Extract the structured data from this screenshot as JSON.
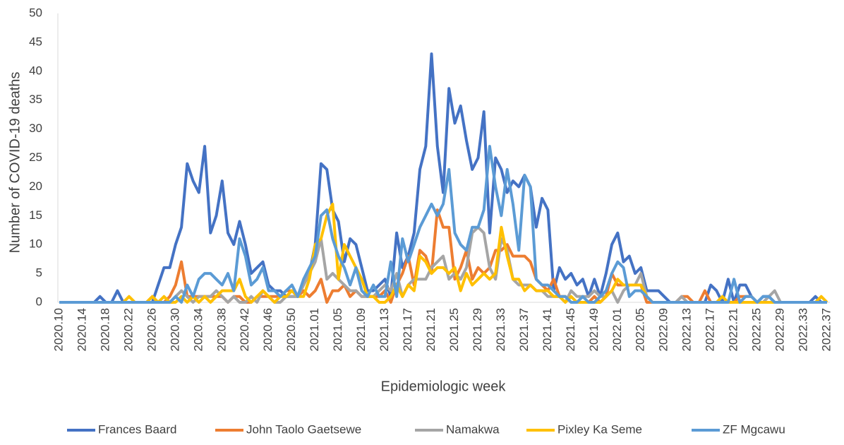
{
  "chart_data": {
    "type": "line",
    "ylabel": "Number of COVID-19 deaths",
    "xlabel": "Epidemiologic week",
    "categories": [
      "2020.10",
      null,
      null,
      null,
      "2020.14",
      null,
      null,
      null,
      "2020.18",
      null,
      null,
      null,
      "2020.22",
      null,
      null,
      null,
      "2020.26",
      null,
      null,
      null,
      "2020.30",
      null,
      null,
      null,
      "2020.34",
      null,
      null,
      null,
      "2020.38",
      null,
      null,
      null,
      "2020.42",
      null,
      null,
      null,
      "2020.46",
      null,
      null,
      null,
      "2020.50",
      null,
      null,
      null,
      "2021.01",
      null,
      null,
      null,
      "2021.05",
      null,
      null,
      null,
      "2021.09",
      null,
      null,
      null,
      "2021.13",
      null,
      null,
      null,
      "2021.17",
      null,
      null,
      null,
      "2021.21",
      null,
      null,
      null,
      "2021.25",
      null,
      null,
      null,
      "2021.29",
      null,
      null,
      null,
      "2021.33",
      null,
      null,
      null,
      "2021.37",
      null,
      null,
      null,
      "2021.41",
      null,
      null,
      null,
      "2021.45",
      null,
      null,
      null,
      "2021.49",
      null,
      null,
      null,
      "2022.01",
      null,
      null,
      null,
      "2022.05",
      null,
      null,
      null,
      "2022.09",
      null,
      null,
      null,
      "2022.13",
      null,
      null,
      null,
      "2022.17",
      null,
      null,
      null,
      "2022.21",
      null,
      null,
      null,
      "2022.25",
      null,
      null,
      null,
      "2022.29",
      null,
      null,
      null,
      "2022.33",
      null,
      null,
      null,
      "2022.37"
    ],
    "series": [
      {
        "name": "Frances Baard",
        "color": "#4472c4",
        "values": [
          0,
          0,
          0,
          0,
          0,
          0,
          0,
          1,
          0,
          0,
          2,
          0,
          0,
          0,
          0,
          0,
          0,
          3,
          6,
          6,
          10,
          13,
          24,
          21,
          19,
          27,
          12,
          15,
          21,
          12,
          10,
          14,
          10,
          5,
          6,
          7,
          3,
          2,
          2,
          1,
          1,
          1,
          3,
          5,
          10,
          24,
          23,
          16,
          14,
          7,
          11,
          10,
          6,
          2,
          2,
          3,
          4,
          1,
          12,
          6,
          8,
          12,
          23,
          27,
          43,
          27,
          19,
          37,
          31,
          34,
          28,
          23,
          25,
          33,
          12,
          25,
          23,
          19,
          21,
          20,
          22,
          20,
          13,
          18,
          16,
          2,
          6,
          4,
          5,
          3,
          4,
          1,
          4,
          1,
          5,
          10,
          12,
          7,
          8,
          5,
          6,
          2,
          2,
          2,
          1,
          0,
          0,
          0,
          0,
          0,
          0,
          0,
          3,
          2,
          0,
          4,
          0,
          3,
          3,
          1,
          0,
          1,
          1,
          0,
          0,
          0,
          0,
          0,
          0,
          0,
          1,
          0,
          0
        ]
      },
      {
        "name": "John Taolo Gaetsewe",
        "color": "#ed7d31",
        "values": [
          0,
          0,
          0,
          0,
          0,
          0,
          0,
          0,
          0,
          0,
          0,
          0,
          0,
          0,
          0,
          0,
          1,
          0,
          0,
          1,
          3,
          7,
          1,
          1,
          1,
          1,
          1,
          1,
          1,
          0,
          1,
          1,
          0,
          0,
          1,
          1,
          1,
          1,
          1,
          2,
          2,
          1,
          2,
          1,
          2,
          4,
          0,
          2,
          2,
          3,
          1,
          2,
          1,
          1,
          1,
          1,
          2,
          0,
          3,
          5,
          8,
          3,
          9,
          8,
          5,
          16,
          13,
          13,
          4,
          6,
          9,
          4,
          6,
          5,
          6,
          9,
          9,
          10,
          8,
          8,
          8,
          7,
          4,
          3,
          2,
          4,
          1,
          1,
          0,
          0,
          0,
          0,
          1,
          0,
          1,
          5,
          3,
          3,
          3,
          3,
          3,
          0,
          0,
          0,
          0,
          0,
          0,
          1,
          1,
          0,
          0,
          2,
          0,
          0,
          0,
          0,
          0,
          1,
          1,
          1,
          0,
          0,
          0,
          0,
          0,
          0,
          0,
          0,
          0,
          0,
          0,
          0,
          0
        ]
      },
      {
        "name": "Namakwa",
        "color": "#a5a5a5",
        "values": [
          0,
          0,
          0,
          0,
          0,
          0,
          0,
          0,
          0,
          0,
          0,
          0,
          0,
          0,
          0,
          0,
          0,
          0,
          0,
          0,
          1,
          2,
          1,
          0,
          1,
          1,
          1,
          2,
          1,
          0,
          1,
          0,
          0,
          1,
          0,
          2,
          1,
          0,
          0,
          1,
          1,
          1,
          3,
          5,
          7,
          11,
          4,
          5,
          4,
          3,
          2,
          2,
          1,
          1,
          1,
          2,
          3,
          2,
          5,
          1,
          3,
          4,
          4,
          4,
          6,
          7,
          8,
          4,
          5,
          4,
          6,
          12,
          13,
          12,
          6,
          4,
          11,
          9,
          4,
          3,
          3,
          3,
          2,
          2,
          1,
          1,
          1,
          0,
          2,
          1,
          1,
          1,
          2,
          1,
          1,
          2,
          0,
          2,
          3,
          3,
          5,
          1,
          0,
          0,
          0,
          0,
          0,
          1,
          0,
          0,
          0,
          0,
          0,
          0,
          0,
          0,
          0,
          0,
          0,
          0,
          0,
          0,
          1,
          2,
          0,
          0,
          0,
          0,
          0,
          0,
          0,
          0,
          0
        ]
      },
      {
        "name": "Pixley Ka Seme",
        "color": "#ffc000",
        "values": [
          0,
          0,
          0,
          0,
          0,
          0,
          0,
          0,
          0,
          0,
          0,
          0,
          1,
          0,
          0,
          0,
          1,
          0,
          1,
          0,
          0,
          1,
          0,
          1,
          0,
          1,
          0,
          1,
          2,
          2,
          2,
          4,
          1,
          0,
          1,
          2,
          1,
          0,
          1,
          1,
          2,
          1,
          1,
          4,
          10,
          11,
          15,
          17,
          4,
          10,
          8,
          6,
          4,
          1,
          1,
          0,
          0,
          1,
          3,
          1,
          3,
          2,
          8,
          7,
          5,
          6,
          6,
          5,
          6,
          2,
          5,
          3,
          4,
          5,
          4,
          5,
          13,
          8,
          4,
          4,
          2,
          3,
          2,
          2,
          2,
          1,
          1,
          0,
          1,
          0,
          0,
          0,
          0,
          0,
          1,
          2,
          4,
          3,
          3,
          3,
          3,
          1,
          0,
          0,
          0,
          0,
          0,
          0,
          0,
          0,
          0,
          0,
          0,
          0,
          1,
          0,
          0,
          0,
          0,
          0,
          0,
          0,
          0,
          0,
          0,
          0,
          0,
          0,
          0,
          0,
          0,
          1,
          0
        ]
      },
      {
        "name": "ZF Mgcawu",
        "color": "#5b9bd5",
        "values": [
          0,
          0,
          0,
          0,
          0,
          0,
          0,
          0,
          0,
          0,
          0,
          0,
          0,
          0,
          0,
          0,
          0,
          0,
          0,
          0,
          1,
          0,
          3,
          1,
          4,
          5,
          5,
          4,
          3,
          5,
          2,
          11,
          8,
          3,
          4,
          6,
          2,
          2,
          1,
          2,
          3,
          1,
          4,
          6,
          8,
          15,
          16,
          11,
          8,
          6,
          3,
          6,
          2,
          1,
          3,
          1,
          1,
          7,
          1,
          11,
          7,
          10,
          13,
          15,
          17,
          15,
          17,
          23,
          12,
          10,
          9,
          13,
          13,
          16,
          27,
          20,
          15,
          23,
          17,
          9,
          22,
          20,
          4,
          3,
          3,
          2,
          1,
          1,
          0,
          0,
          1,
          0,
          0,
          1,
          2,
          5,
          7,
          6,
          1,
          2,
          2,
          1,
          0,
          0,
          0,
          0,
          0,
          0,
          0,
          0,
          0,
          0,
          0,
          0,
          0,
          0,
          4,
          0,
          1,
          1,
          0,
          1,
          1,
          0,
          0,
          0,
          0,
          0,
          0,
          0,
          0,
          0,
          0
        ]
      }
    ],
    "ylim": [
      0,
      50
    ],
    "yticks": [
      0,
      5,
      10,
      15,
      20,
      25,
      30,
      35,
      40,
      45,
      50
    ],
    "grid": false,
    "legend": "bottom"
  }
}
